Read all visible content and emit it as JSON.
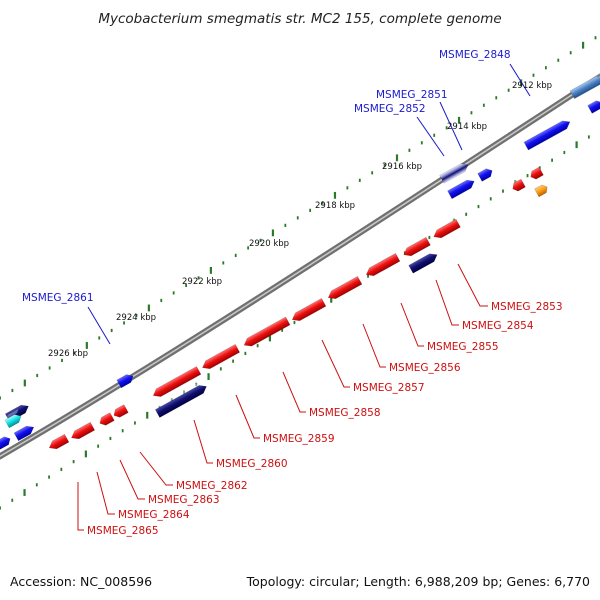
{
  "title": "Mycobacterium smegmatis str. MC2 155, complete genome",
  "ticks": [
    "2912 kbp",
    "2914 kbp",
    "2916 kbp",
    "2918 kbp",
    "2920 kbp",
    "2922 kbp",
    "2924 kbp",
    "2926 kbp"
  ],
  "genes_outer": [
    "MSMEG_2848",
    "MSMEG_2851",
    "MSMEG_2852",
    "MSMEG_2861"
  ],
  "genes_inner": [
    "MSMEG_2853",
    "MSMEG_2854",
    "MSMEG_2855",
    "MSMEG_2856",
    "MSMEG_2857",
    "MSMEG_2858",
    "MSMEG_2859",
    "MSMEG_2860",
    "MSMEG_2862",
    "MSMEG_2863",
    "MSMEG_2864",
    "MSMEG_2865"
  ],
  "footer": {
    "accession": "Accession: NC_008596",
    "summary": "Topology: circular; Length: 6,988,209 bp; Genes: 6,770"
  },
  "colors": {
    "forward": "#1010ee",
    "reverse": "#ee1010",
    "outer_label": "#1a1acc",
    "inner_label": "#cc1010",
    "backbone": "#777777",
    "ticks": "#2a7a2a"
  }
}
